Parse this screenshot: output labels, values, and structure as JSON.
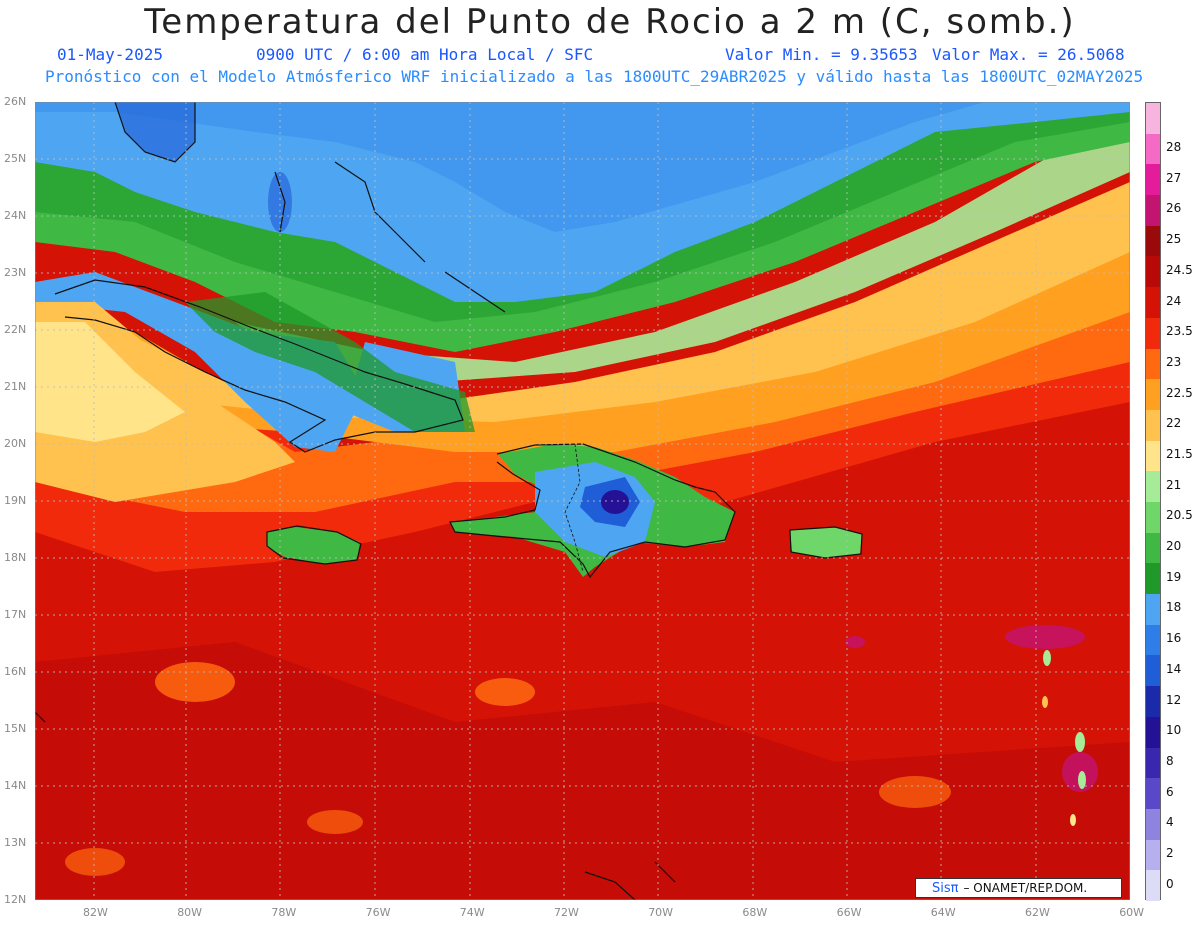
{
  "title": "Temperatura del Punto de Rocio a 2 m (C, somb.)",
  "date": "01-May-2025",
  "time_label": "0900 UTC / 6:00 am Hora Local / SFC",
  "min_label": "Valor Min. = 9.35653",
  "max_label": "Valor Max. = 26.5068",
  "init_label": "Pronóstico con el Modelo Atmósferico WRF inicializado a las 1800UTC_29ABR2025 y válido hasta las  1800UTC_02MAY2025",
  "credit": {
    "logo": "Sisπ",
    "text": " – ONAMET/REP.DOM."
  },
  "lat_labels": [
    "26N",
    "25N",
    "24N",
    "23N",
    "22N",
    "21N",
    "20N",
    "19N",
    "18N",
    "17N",
    "16N",
    "15N",
    "14N",
    "13N",
    "12N"
  ],
  "lon_labels": [
    "82W",
    "80W",
    "78W",
    "76W",
    "74W",
    "72W",
    "70W",
    "68W",
    "66W",
    "64W",
    "62W",
    "60W"
  ],
  "colorbar": [
    {
      "label": "0",
      "color": "#dcdcf6"
    },
    {
      "label": "2",
      "color": "#b8b0ee"
    },
    {
      "label": "4",
      "color": "#8f83e0"
    },
    {
      "label": "6",
      "color": "#5b48c8"
    },
    {
      "label": "8",
      "color": "#3a27b0"
    },
    {
      "label": "10",
      "color": "#241196"
    },
    {
      "label": "12",
      "color": "#1a2aa8"
    },
    {
      "label": "14",
      "color": "#1f5ed6"
    },
    {
      "label": "16",
      "color": "#2f7ee8"
    },
    {
      "label": "18",
      "color": "#4ea6f2"
    },
    {
      "label": "19",
      "color": "#1f9a2a"
    },
    {
      "label": "20",
      "color": "#3fb844"
    },
    {
      "label": "20.5",
      "color": "#6fd66a"
    },
    {
      "label": "21",
      "color": "#a6ec98"
    },
    {
      "label": "21.5",
      "color": "#ffe48a"
    },
    {
      "label": "22",
      "color": "#ffc24e"
    },
    {
      "label": "22.5",
      "color": "#ffa020"
    },
    {
      "label": "23",
      "color": "#ff6a10"
    },
    {
      "label": "23.5",
      "color": "#f02a0a"
    },
    {
      "label": "24",
      "color": "#d41206"
    },
    {
      "label": "24.5",
      "color": "#b80808"
    },
    {
      "label": "25",
      "color": "#9a0a0a"
    },
    {
      "label": "26",
      "color": "#c21470"
    },
    {
      "label": "27",
      "color": "#e41c9c"
    },
    {
      "label": "28",
      "color": "#f46ac4"
    },
    {
      "label": "",
      "color": "#f7b4de"
    }
  ]
}
